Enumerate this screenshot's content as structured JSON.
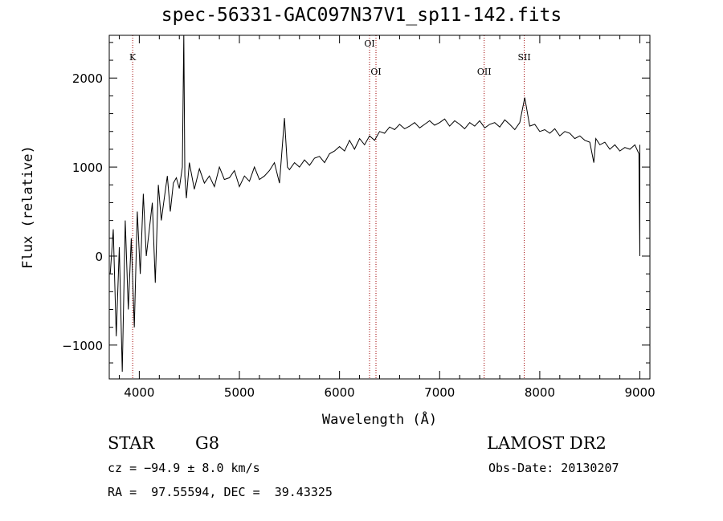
{
  "chart_data": {
    "type": "line",
    "title": "spec-56331-GAC097N37V1_sp11-142.fits",
    "xlabel": "Wavelength (Å)",
    "ylabel": "Flux (relative)",
    "xlim": [
      3700,
      9100
    ],
    "ylim": [
      -1380,
      2480
    ],
    "xticks": [
      4000,
      5000,
      6000,
      7000,
      8000,
      9000
    ],
    "xtick_labels": [
      "4000",
      "5000",
      "6000",
      "7000",
      "8000",
      "9000"
    ],
    "yticks": [
      -1000,
      0,
      1000,
      2000
    ],
    "ytick_labels": [
      "−1000",
      "0",
      "1000",
      "2000"
    ],
    "series": [
      {
        "name": "flux",
        "color": "#000000",
        "x": [
          3710,
          3740,
          3770,
          3800,
          3830,
          3860,
          3890,
          3920,
          3950,
          3980,
          4010,
          4040,
          4070,
          4100,
          4130,
          4160,
          4190,
          4220,
          4250,
          4280,
          4310,
          4340,
          4370,
          4400,
          4430,
          4445,
          4455,
          4470,
          4500,
          4550,
          4600,
          4650,
          4700,
          4750,
          4800,
          4850,
          4900,
          4950,
          5000,
          5050,
          5100,
          5150,
          5200,
          5250,
          5300,
          5350,
          5400,
          5450,
          5480,
          5500,
          5550,
          5600,
          5650,
          5700,
          5750,
          5800,
          5850,
          5900,
          5950,
          6000,
          6050,
          6100,
          6150,
          6200,
          6250,
          6300,
          6350,
          6400,
          6450,
          6500,
          6550,
          6600,
          6650,
          6700,
          6750,
          6800,
          6850,
          6900,
          6950,
          7000,
          7050,
          7100,
          7150,
          7200,
          7250,
          7300,
          7350,
          7400,
          7450,
          7500,
          7550,
          7600,
          7650,
          7700,
          7750,
          7800,
          7850,
          7900,
          7950,
          8000,
          8050,
          8100,
          8150,
          8200,
          8250,
          8300,
          8350,
          8400,
          8450,
          8500,
          8540,
          8560,
          8600,
          8650,
          8700,
          8750,
          8800,
          8850,
          8900,
          8950,
          8990,
          9000,
          9000
        ],
        "y": [
          -200,
          300,
          -900,
          100,
          -1300,
          400,
          -600,
          200,
          -800,
          500,
          -200,
          700,
          0,
          300,
          600,
          -300,
          800,
          400,
          650,
          900,
          500,
          820,
          880,
          760,
          1000,
          2500,
          900,
          650,
          1050,
          750,
          980,
          820,
          900,
          780,
          1000,
          860,
          880,
          960,
          780,
          900,
          840,
          1000,
          860,
          900,
          960,
          1050,
          820,
          1550,
          1000,
          970,
          1050,
          1000,
          1080,
          1020,
          1100,
          1120,
          1050,
          1150,
          1180,
          1230,
          1180,
          1300,
          1200,
          1320,
          1250,
          1350,
          1300,
          1400,
          1380,
          1450,
          1420,
          1480,
          1430,
          1460,
          1500,
          1440,
          1480,
          1520,
          1470,
          1500,
          1540,
          1460,
          1520,
          1480,
          1430,
          1500,
          1460,
          1520,
          1440,
          1480,
          1500,
          1450,
          1530,
          1480,
          1420,
          1500,
          1780,
          1460,
          1480,
          1400,
          1420,
          1380,
          1430,
          1350,
          1400,
          1380,
          1320,
          1350,
          1300,
          1280,
          1050,
          1320,
          1250,
          1280,
          1200,
          1250,
          1180,
          1220,
          1200,
          1250,
          1150,
          0,
          1250
        ]
      }
    ],
    "lines": [
      {
        "label": "K",
        "x": 3934
      },
      {
        "label": "OI",
        "x": 6300
      },
      {
        "label": "OI",
        "x": 6364
      },
      {
        "label": "OII",
        "x": 7445
      },
      {
        "label": "SII",
        "x": 7845
      }
    ],
    "line_color": "#a00000"
  },
  "info": {
    "object_class": "STAR",
    "subclass": "G8",
    "redshift": "cz = −94.9 ± 8.0 km/s",
    "coords": "RA =  97.55594, DEC =  39.43325",
    "survey": "LAMOST DR2",
    "obs_date": "Obs-Date: 20130207"
  }
}
